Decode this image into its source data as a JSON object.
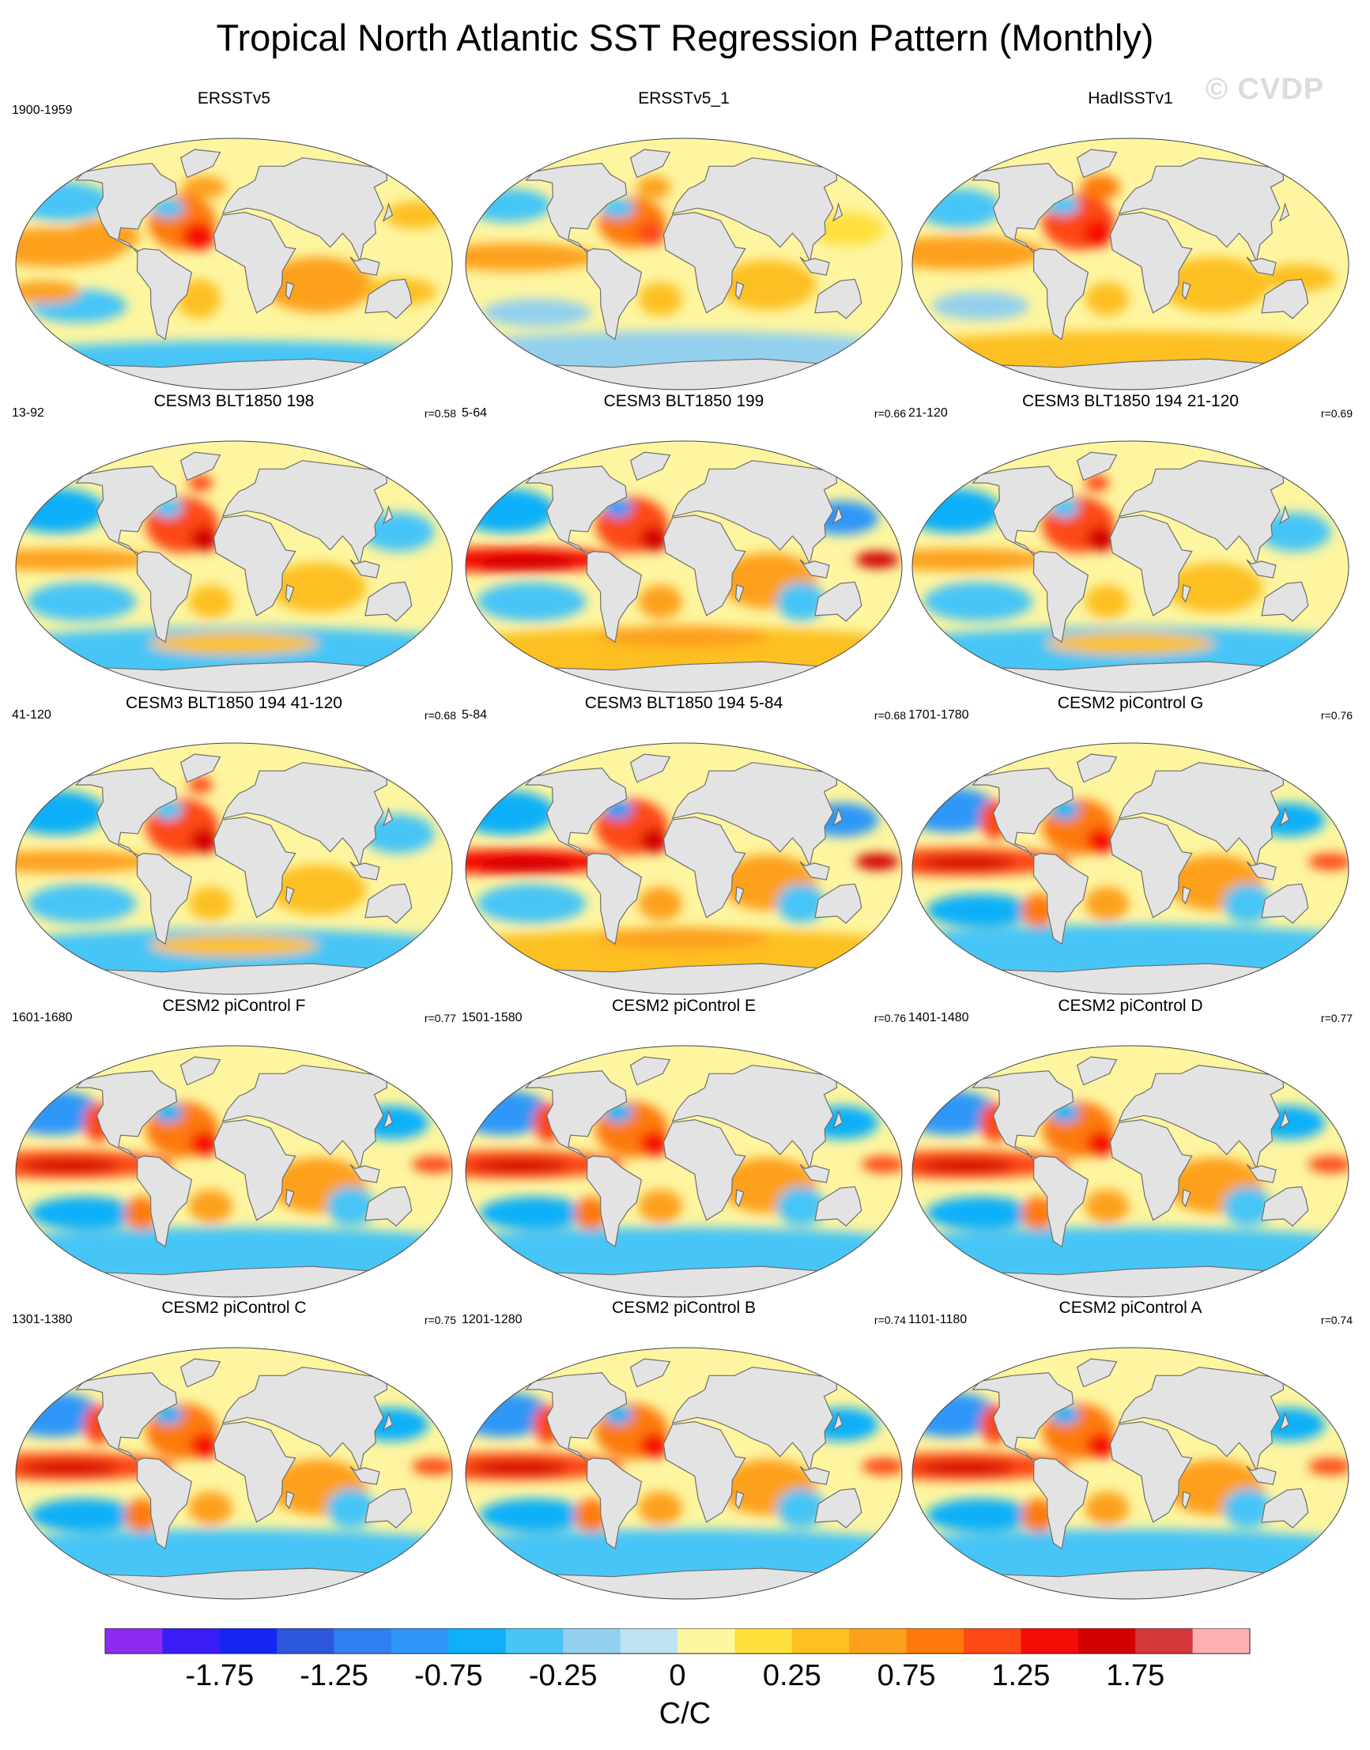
{
  "title": "Tropical North Atlantic SST Regression Pattern (Monthly)",
  "watermark": "© CVDP",
  "colors": {
    "land": "#e3e3e3",
    "coast": "#6e6e6e",
    "neutral": "#fdf5a0"
  },
  "panels": [
    {
      "title": "ERSSTv5",
      "period": "1900-1959",
      "corr": "",
      "pattern": "obs1"
    },
    {
      "title": "ERSSTv5_1",
      "period": "",
      "corr": "",
      "pattern": "obs2"
    },
    {
      "title": "HadISSTv1",
      "period": "",
      "corr": "",
      "pattern": "obs3"
    },
    {
      "title": "CESM3 BLT1850 198",
      "period": "13-92",
      "corr": "r=0.58",
      "pattern": "model1"
    },
    {
      "title": "CESM3 BLT1850 199",
      "period": "5-64",
      "corr": "r=0.66",
      "pattern": "model2"
    },
    {
      "title": "CESM3 BLT1850 194 21-120",
      "period": "21-120",
      "corr": "r=0.69",
      "pattern": "model1"
    },
    {
      "title": "CESM3 BLT1850 194 41-120",
      "period": "41-120",
      "corr": "r=0.68",
      "pattern": "model1"
    },
    {
      "title": "CESM3 BLT1850 194 5-84",
      "period": "5-84",
      "corr": "r=0.68",
      "pattern": "model2"
    },
    {
      "title": "CESM2 piControl G",
      "period": "1701-1780",
      "corr": "r=0.76",
      "pattern": "cesm2"
    },
    {
      "title": "CESM2 piControl F",
      "period": "1601-1680",
      "corr": "r=0.77",
      "pattern": "cesm2"
    },
    {
      "title": "CESM2 piControl E",
      "period": "1501-1580",
      "corr": "r=0.76",
      "pattern": "cesm2"
    },
    {
      "title": "CESM2 piControl D",
      "period": "1401-1480",
      "corr": "r=0.77",
      "pattern": "cesm2"
    },
    {
      "title": "CESM2 piControl C",
      "period": "1301-1380",
      "corr": "r=0.75",
      "pattern": "cesm2"
    },
    {
      "title": "CESM2 piControl B",
      "period": "1201-1280",
      "corr": "r=0.74",
      "pattern": "cesm2"
    },
    {
      "title": "CESM2 piControl A",
      "period": "1101-1180",
      "corr": "r=0.74",
      "pattern": "cesm2"
    }
  ],
  "chart_data": {
    "type": "heatmap",
    "title": "Tropical North Atlantic SST Regression Pattern (Monthly)",
    "projection": "Robinson-like global map, 15 panels in 5 rows x 3 columns",
    "colorbar": {
      "units": "C/C",
      "levels": [
        -2.0,
        -1.75,
        -1.5,
        -1.25,
        -1.0,
        -0.75,
        -0.5,
        -0.25,
        -0.1,
        0,
        0.1,
        0.25,
        0.5,
        0.75,
        1.0,
        1.25,
        1.5,
        1.75,
        2.0
      ],
      "tick_labels": [
        "-1.75",
        "-1.25",
        "-0.75",
        "-0.25",
        "0",
        "0.25",
        "0.75",
        "1.25",
        "1.75"
      ],
      "colors": [
        "#8c2cf0",
        "#3a1cf4",
        "#1626f0",
        "#2c57dc",
        "#2f7ff0",
        "#2f97f8",
        "#0fb0f8",
        "#46c5f6",
        "#93d0ee",
        "#bde2f4",
        "#fdf7a0",
        "#fde03c",
        "#fdc020",
        "#fda01c",
        "#fd7a0a",
        "#fd4a14",
        "#f60c06",
        "#d20000",
        "#d43838",
        "#fdb0b2"
      ]
    },
    "panels": [
      {
        "name": "ERSSTv5",
        "period": "1900-1959",
        "r": null
      },
      {
        "name": "ERSSTv5_1",
        "period": null,
        "r": null
      },
      {
        "name": "HadISSTv1",
        "period": null,
        "r": null
      },
      {
        "name": "CESM3 BLT1850 198",
        "period": "13-92",
        "r": 0.58
      },
      {
        "name": "CESM3 BLT1850 199",
        "period": "5-64",
        "r": 0.66
      },
      {
        "name": "CESM3 BLT1850 194 21-120",
        "period": "21-120",
        "r": 0.69
      },
      {
        "name": "CESM3 BLT1850 194 41-120",
        "period": "41-120",
        "r": 0.68
      },
      {
        "name": "CESM3 BLT1850 194 5-84",
        "period": "5-84",
        "r": 0.68
      },
      {
        "name": "CESM2 piControl G",
        "period": "1701-1780",
        "r": 0.76
      },
      {
        "name": "CESM2 piControl F",
        "period": "1601-1680",
        "r": 0.77
      },
      {
        "name": "CESM2 piControl E",
        "period": "1501-1580",
        "r": 0.76
      },
      {
        "name": "CESM2 piControl D",
        "period": "1401-1480",
        "r": 0.77
      },
      {
        "name": "CESM2 piControl C",
        "period": "1301-1380",
        "r": 0.75
      },
      {
        "name": "CESM2 piControl B",
        "period": "1201-1280",
        "r": 0.74
      },
      {
        "name": "CESM2 piControl A",
        "period": "1101-1180",
        "r": 0.74
      }
    ]
  }
}
